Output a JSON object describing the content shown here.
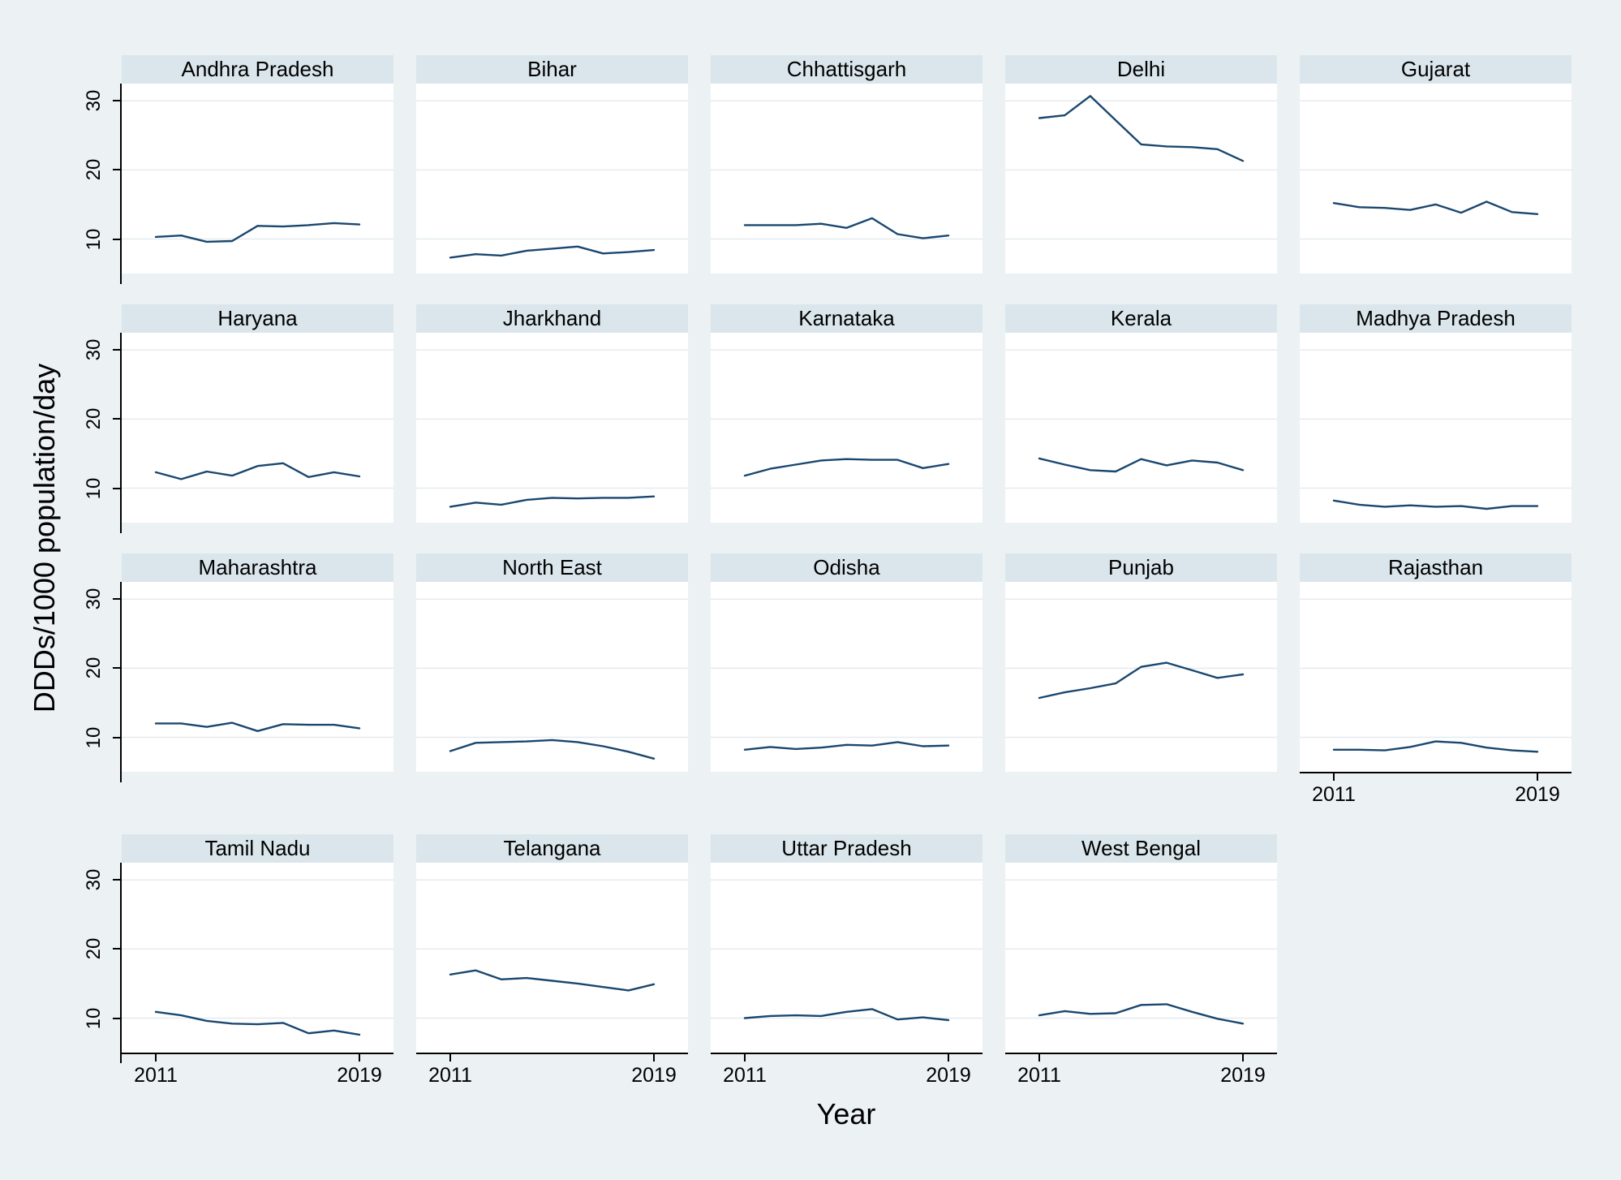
{
  "figure": {
    "ylabel": "DDDs/1000 population/day",
    "xlabel": "Year",
    "colors": {
      "background": "#ECF1F4",
      "panel_title_bg": "#DAE6EC",
      "plot_bg": "#FFFFFF",
      "gridline": "#E6EBEF",
      "line": "#1A476F",
      "axis": "#000000"
    }
  },
  "chart_data": {
    "type": "line",
    "x": [
      2011,
      2012,
      2013,
      2014,
      2015,
      2016,
      2017,
      2018,
      2019
    ],
    "x_axis_tick_labels": [
      "2011",
      "2019"
    ],
    "y_ticks": [
      10,
      20,
      30
    ],
    "ylim": [
      5,
      32.5
    ],
    "xlabel": "Year",
    "ylabel": "DDDs/1000 population/day",
    "grid": true,
    "legend": false,
    "line_color": "#1A476F",
    "layout": "5 columns x 4 rows, panel titles in header strips",
    "series": [
      {
        "name": "Andhra Pradesh",
        "values": [
          10.3,
          10.5,
          9.6,
          9.7,
          11.9,
          11.8,
          12.0,
          12.3,
          12.1
        ]
      },
      {
        "name": "Bihar",
        "values": [
          7.3,
          7.8,
          7.6,
          8.3,
          8.6,
          8.9,
          7.9,
          8.1,
          8.4
        ]
      },
      {
        "name": "Chhattisgarh",
        "values": [
          12.0,
          12.0,
          12.0,
          12.2,
          11.6,
          13.0,
          10.7,
          10.1,
          10.5
        ]
      },
      {
        "name": "Delhi",
        "values": [
          27.5,
          27.9,
          30.7,
          27.2,
          23.7,
          23.4,
          23.3,
          23.0,
          21.3
        ]
      },
      {
        "name": "Gujarat",
        "values": [
          15.2,
          14.6,
          14.5,
          14.2,
          15.0,
          13.8,
          15.4,
          13.9,
          13.6
        ]
      },
      {
        "name": "Haryana",
        "values": [
          12.3,
          11.3,
          12.4,
          11.8,
          13.2,
          13.6,
          11.6,
          12.3,
          11.7
        ]
      },
      {
        "name": "Jharkhand",
        "values": [
          7.3,
          7.9,
          7.6,
          8.3,
          8.6,
          8.5,
          8.6,
          8.6,
          8.8
        ]
      },
      {
        "name": "Karnataka",
        "values": [
          11.8,
          12.8,
          13.4,
          14.0,
          14.2,
          14.1,
          14.1,
          12.9,
          13.5
        ]
      },
      {
        "name": "Kerala",
        "values": [
          14.3,
          13.4,
          12.6,
          12.4,
          14.2,
          13.3,
          14.0,
          13.7,
          12.6
        ]
      },
      {
        "name": "Madhya Pradesh",
        "values": [
          8.2,
          7.6,
          7.3,
          7.5,
          7.3,
          7.4,
          7.0,
          7.4,
          7.4
        ]
      },
      {
        "name": "Maharashtra",
        "values": [
          12.0,
          12.0,
          11.5,
          12.1,
          10.9,
          11.9,
          11.8,
          11.8,
          11.3
        ]
      },
      {
        "name": "North East",
        "values": [
          8.0,
          9.2,
          9.3,
          9.4,
          9.6,
          9.3,
          8.7,
          7.9,
          6.9
        ]
      },
      {
        "name": "Odisha",
        "values": [
          8.2,
          8.6,
          8.3,
          8.5,
          8.9,
          8.8,
          9.3,
          8.7,
          8.8
        ]
      },
      {
        "name": "Punjab",
        "values": [
          15.7,
          16.5,
          17.1,
          17.8,
          20.2,
          20.8,
          19.7,
          18.6,
          19.1
        ]
      },
      {
        "name": "Rajasthan",
        "values": [
          8.2,
          8.2,
          8.1,
          8.6,
          9.4,
          9.2,
          8.5,
          8.1,
          7.9
        ]
      },
      {
        "name": "Tamil Nadu",
        "values": [
          10.9,
          10.4,
          9.6,
          9.2,
          9.1,
          9.3,
          7.8,
          8.2,
          7.6
        ]
      },
      {
        "name": "Telangana",
        "values": [
          16.3,
          16.9,
          15.6,
          15.8,
          15.4,
          15.0,
          14.5,
          14.0,
          14.9
        ]
      },
      {
        "name": "Uttar Pradesh",
        "values": [
          10.0,
          10.3,
          10.4,
          10.3,
          10.9,
          11.3,
          9.8,
          10.1,
          9.7
        ]
      },
      {
        "name": "West Bengal",
        "values": [
          10.4,
          11.0,
          10.6,
          10.7,
          11.9,
          12.0,
          10.9,
          9.9,
          9.2
        ]
      }
    ]
  }
}
